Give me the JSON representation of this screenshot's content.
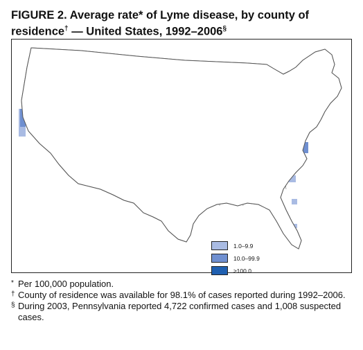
{
  "header": {
    "title": "FIGURE 2. Average rate* of Lyme disease, by county of residence",
    "title_mark": "†",
    "title_suffix": " — United States, 1992–2006",
    "title_suffix_mark": "§"
  },
  "map": {
    "colors": {
      "low": "#a9bbe3",
      "mid": "#6f8fd0",
      "high": "#1f5fb0",
      "outline": "#555555",
      "background": "#ffffff"
    },
    "legend": {
      "items": [
        {
          "label": "1.0–9.9",
          "color": "#a9bbe3"
        },
        {
          "label": "10.0–99.9",
          "color": "#6f8fd0"
        },
        {
          "label": "≥100.0",
          "color": "#1f5fb0"
        }
      ]
    }
  },
  "footnotes": [
    {
      "mark": "*",
      "text": "Per 100,000 population."
    },
    {
      "mark": "†",
      "text": "County of residence was available for 98.1% of cases reported during 1992–2006."
    },
    {
      "mark": "§",
      "text": "During 2003, Pennsylvania reported 4,722 confirmed cases and 1,008 suspected cases."
    }
  ]
}
